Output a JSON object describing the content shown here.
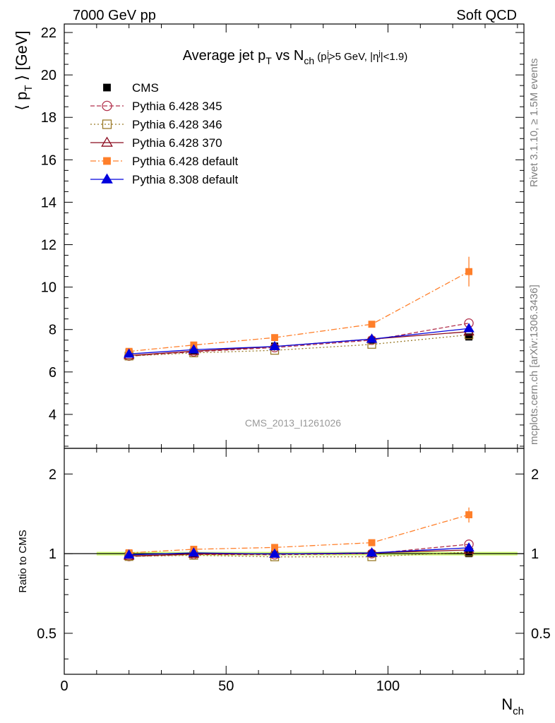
{
  "header": {
    "energy": "7000 GeV pp",
    "process": "Soft QCD"
  },
  "side_text": {
    "rivet": "Rivet 3.1.10, ≥ 1.5M events",
    "mcplots": "mcplots.cern.ch [arXiv:1306.3436]"
  },
  "watermark": "CMS_2013_I1261026",
  "title": {
    "main": "Average jet p",
    "main_sub": "T",
    "vs": " vs N",
    "vs_sub": "ch",
    "cut_open": " (p",
    "cut_sub": "T",
    "cut_sup": "j",
    "cut_mid": ">5 GeV, |η",
    "cut_sup2": "j",
    "cut_close": "|<1.9)"
  },
  "axes": {
    "ylabel_main": "⟨ p",
    "ylabel_sub": "T",
    "ylabel_end": " ⟩ [GeV]",
    "ratio_ylabel": "Ratio to CMS",
    "xlabel_main": "N",
    "xlabel_sub": "ch"
  },
  "chart_data": {
    "type": "line",
    "xlim": [
      0,
      142
    ],
    "ylim": [
      2.4,
      22.4
    ],
    "ratio_ylim": [
      0.35,
      2.5
    ],
    "ratio_scale": "log",
    "grid": false,
    "legend_position": "top-left",
    "x_ticks": [
      0,
      50,
      100
    ],
    "y_ticks": [
      4,
      6,
      8,
      10,
      12,
      14,
      16,
      18,
      20,
      22
    ],
    "ratio_ticks": [
      0.5,
      1,
      2
    ],
    "x": [
      20,
      40,
      65,
      95,
      125
    ],
    "data": {
      "name": "CMS",
      "values": [
        6.92,
        7.0,
        7.22,
        7.5,
        7.65
      ],
      "errors": [
        0.1,
        0.1,
        0.1,
        0.12,
        0.12
      ],
      "color": "#000000"
    },
    "band": {
      "x_range": [
        10,
        140
      ],
      "color": "#ccff66"
    },
    "series": [
      {
        "name": "Pythia 6.428 345",
        "values": [
          6.75,
          6.95,
          7.15,
          7.5,
          8.3
        ],
        "color": "#b2324d",
        "marker": "open-circle",
        "dash": "6,3"
      },
      {
        "name": "Pythia 6.428 346",
        "values": [
          6.75,
          6.9,
          7.02,
          7.3,
          7.75
        ],
        "color": "#9a7a28",
        "marker": "open-square",
        "dash": "2,3"
      },
      {
        "name": "Pythia 6.428 370",
        "values": [
          6.78,
          6.98,
          7.2,
          7.55,
          7.9
        ],
        "color": "#8b0a1e",
        "marker": "open-triangle",
        "dash": ""
      },
      {
        "name": "Pythia 6.428 default",
        "values": [
          6.97,
          7.27,
          7.62,
          8.25,
          10.73
        ],
        "errors": [
          0.05,
          0.05,
          0.06,
          0.1,
          0.7
        ],
        "color": "#ff7f2a",
        "marker": "filled-square",
        "dash": "8,3,2,3"
      },
      {
        "name": "Pythia 8.308 default",
        "values": [
          6.85,
          7.05,
          7.2,
          7.55,
          8.05
        ],
        "color": "#0000dd",
        "marker": "filled-triangle",
        "dash": ""
      }
    ]
  }
}
